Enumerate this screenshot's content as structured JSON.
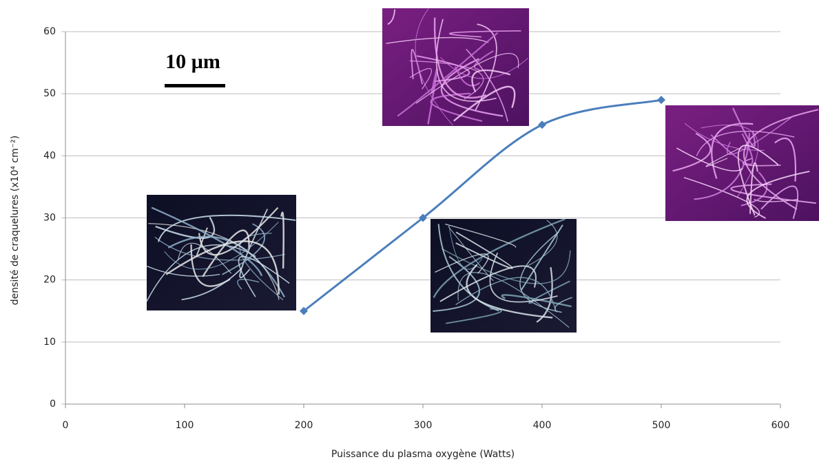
{
  "chart_data": {
    "type": "line",
    "x_label": "Puissance du plasma oxygène (Watts)",
    "y_label": "densité de craquelures  (x10⁴  cm⁻²)",
    "annotation": "10 µm",
    "xlim": [
      0,
      600
    ],
    "xticks": [
      0,
      100,
      200,
      300,
      400,
      500,
      600
    ],
    "ylim": [
      0,
      60
    ],
    "yticks": [
      0,
      10,
      20,
      30,
      40,
      50,
      60
    ],
    "grid": true,
    "series": [
      {
        "color": "#4a7ebb",
        "x": [
          200,
          300,
          400,
          500
        ],
        "values": [
          15,
          30,
          45,
          49
        ]
      }
    ]
  }
}
